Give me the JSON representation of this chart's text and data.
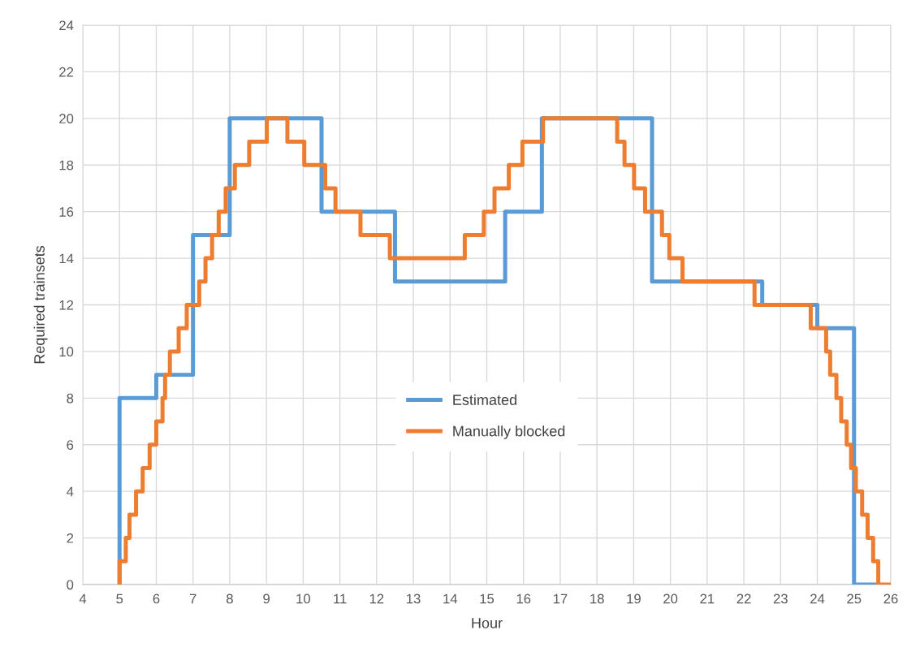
{
  "chart_data": {
    "type": "step",
    "xlabel": "Hour",
    "ylabel": "Required trainsets",
    "xlim": [
      4,
      26
    ],
    "xticks": [
      4,
      5,
      6,
      7,
      8,
      9,
      10,
      11,
      12,
      13,
      14,
      15,
      16,
      17,
      18,
      19,
      20,
      21,
      22,
      23,
      24,
      25,
      26
    ],
    "ylim": [
      0,
      24
    ],
    "yticks": [
      0,
      2,
      4,
      6,
      8,
      10,
      12,
      14,
      16,
      18,
      20,
      22,
      24
    ],
    "grid": true,
    "legend": "center",
    "line_style": "solid",
    "marker": "none",
    "series": [
      {
        "name": "Estimated",
        "color": "#5b9bd5",
        "x": [
          5,
          5,
          6,
          7,
          8,
          10.5,
          12.5,
          15.5,
          16.5,
          19.5,
          22.5,
          24,
          25,
          25.66
        ],
        "values": [
          0,
          8,
          9,
          15,
          20,
          16,
          13,
          16,
          20,
          13,
          12,
          11,
          0,
          0
        ]
      },
      {
        "name": "Manually blocked",
        "color": "#ed7d31",
        "x": [
          5,
          5,
          5.17,
          5.27,
          5.45,
          5.63,
          5.82,
          6.0,
          6.17,
          6.24,
          6.37,
          6.61,
          6.83,
          7.17,
          7.34,
          7.52,
          7.7,
          7.89,
          8.14,
          8.53,
          9.01,
          9.57,
          10.03,
          10.6,
          10.88,
          11.56,
          12.36,
          14.4,
          14.92,
          15.21,
          15.6,
          15.97,
          16.53,
          18.55,
          18.75,
          19.01,
          19.31,
          19.77,
          19.97,
          20.33,
          22.29,
          23.82,
          24.24,
          24.35,
          24.52,
          24.65,
          24.8,
          24.92,
          25.05,
          25.22,
          25.37,
          25.52,
          25.66,
          26
        ],
        "values": [
          0,
          1,
          2,
          3,
          4,
          5,
          6,
          7,
          8,
          9,
          10,
          11,
          12,
          13,
          14,
          15,
          16,
          17,
          18,
          19,
          20,
          19,
          18,
          17,
          16,
          15,
          14,
          15,
          16,
          17,
          18,
          19,
          20,
          19,
          18,
          17,
          16,
          15,
          14,
          13,
          12,
          11,
          10,
          9,
          8,
          7,
          6,
          5,
          4,
          3,
          2,
          1,
          0,
          0
        ]
      }
    ]
  }
}
